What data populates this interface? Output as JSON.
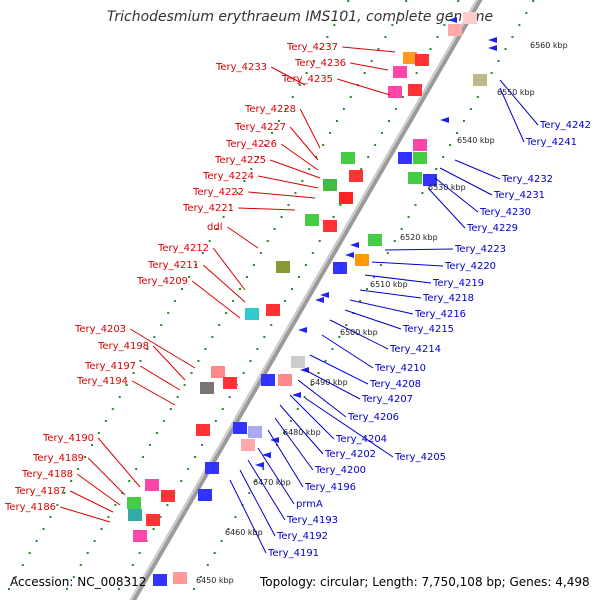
{
  "title": "Trichodesmium erythraeum IMS101, complete genome",
  "footer": {
    "accession": "Accession: NC_008312",
    "summary": "Topology: circular; Length: 7,750,108 bp; Genes: 4,498"
  },
  "colors": {
    "left_labels": "#dd0000",
    "right_labels": "#0000cc",
    "backbone": "#8a8a8a"
  },
  "scale_labels": [
    "6450 kbp",
    "6460 kbp",
    "6470 kbp",
    "6480 kbp",
    "6490 kbp",
    "6500 kbp",
    "6510 kbp",
    "6520 kbp",
    "6530 kbp",
    "6540 kbp",
    "6550 kbp",
    "6560 kbp"
  ],
  "left_labels": [
    "Tery_4237",
    "Tery_4236",
    "Tery_4233",
    "Tery_4235",
    "Tery_4228",
    "Tery_4227",
    "Tery_4226",
    "Tery_4225",
    "Tery_4224",
    "Tery_4222",
    "Tery_4221",
    "ddl",
    "Tery_4212",
    "Tery_4211",
    "Tery_4209",
    "Tery_4203",
    "Tery_4198",
    "Tery_4197",
    "Tery_4194",
    "Tery_4190",
    "Tery_4189",
    "Tery_4188",
    "Tery_4187",
    "Tery_4186"
  ],
  "right_labels": [
    "Tery_4242",
    "Tery_4241",
    "Tery_4232",
    "Tery_4231",
    "Tery_4230",
    "Tery_4229",
    "Tery_4223",
    "Tery_4220",
    "Tery_4219",
    "Tery_4218",
    "Tery_4216",
    "Tery_4215",
    "Tery_4214",
    "Tery_4210",
    "Tery_4208",
    "Tery_4207",
    "Tery_4206",
    "Tery_4204",
    "Tery_4202",
    "Tery_4205",
    "Tery_4200",
    "Tery_4196",
    "prmA",
    "Tery_4193",
    "Tery_4192",
    "Tery_4191"
  ]
}
